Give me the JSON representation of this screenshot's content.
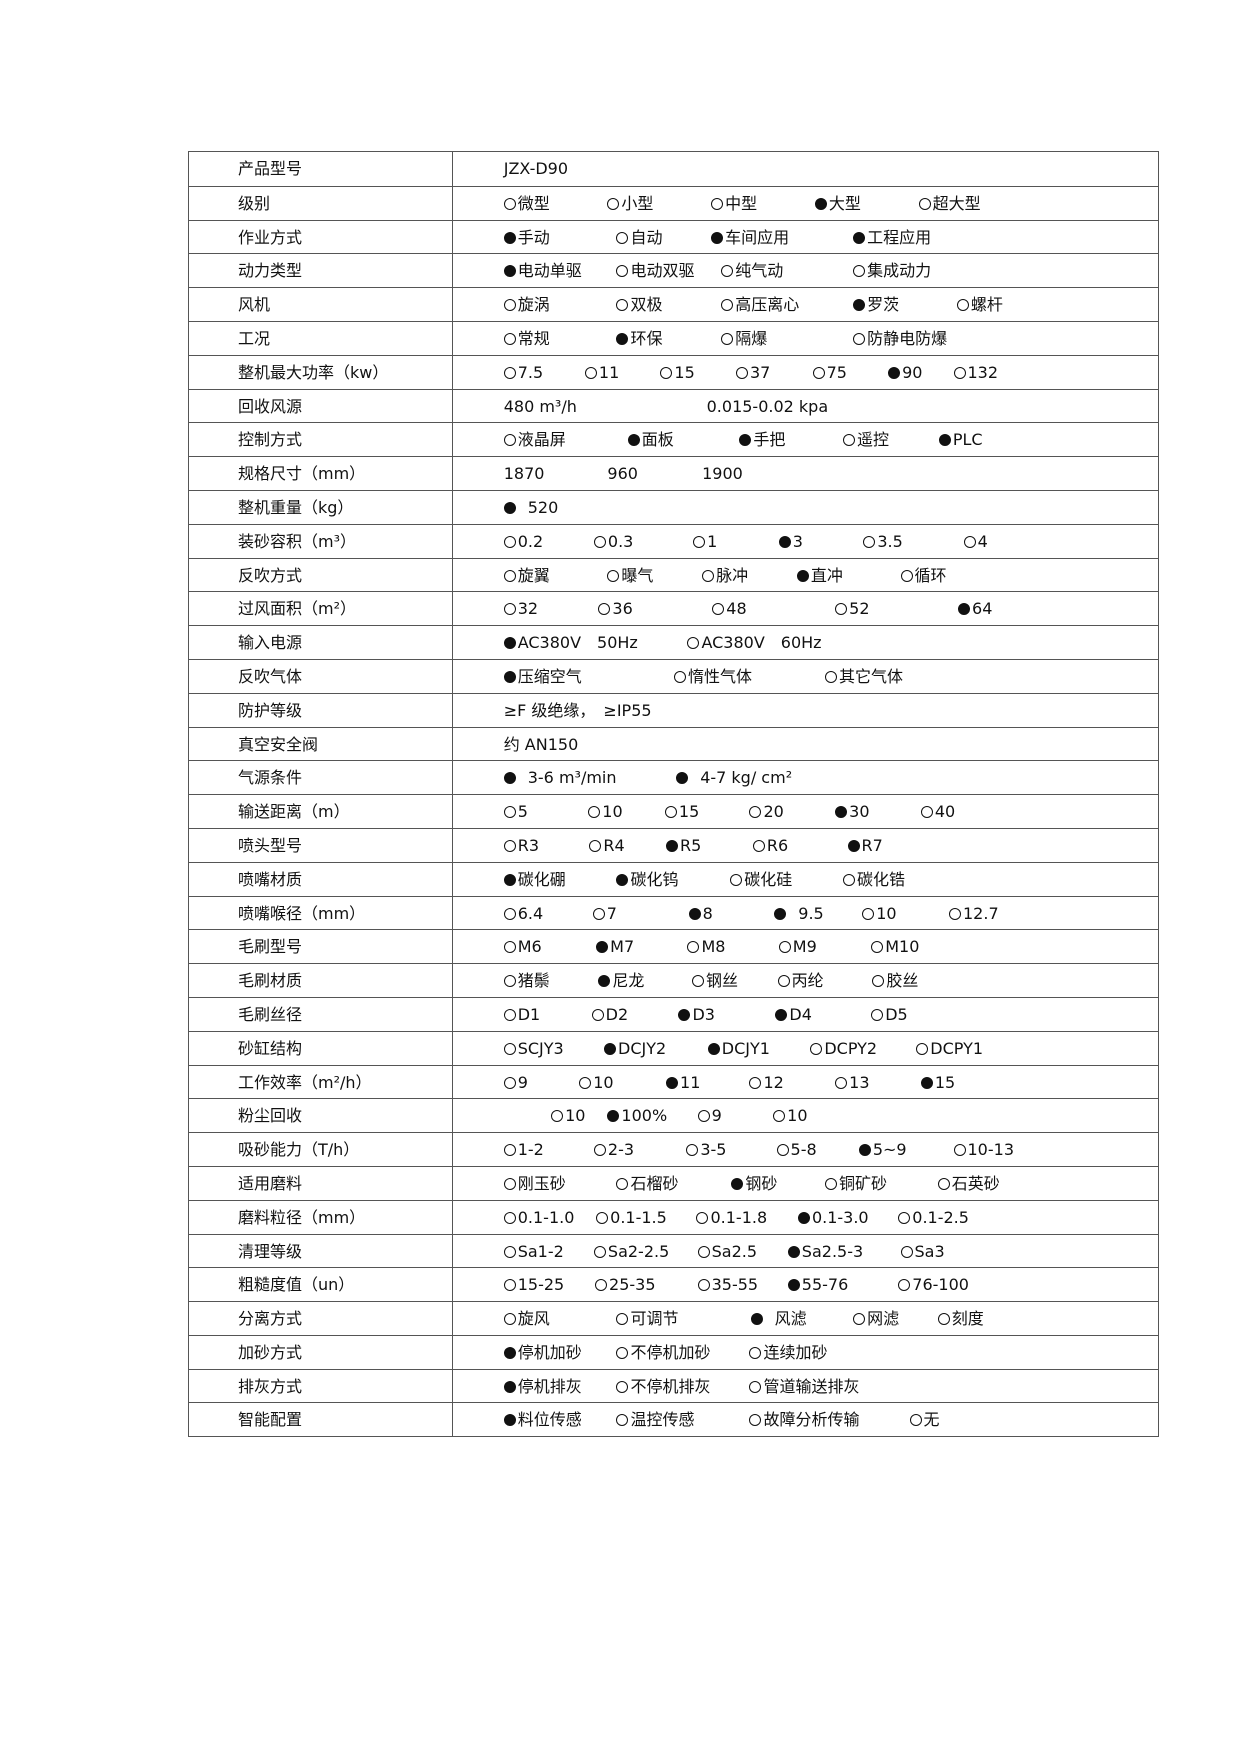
{
  "spec_table": {
    "rows": [
      {
        "label": "产品型号",
        "options": [
          {
            "text": "JZX-D90"
          }
        ]
      },
      {
        "label": "级别",
        "options": [
          {
            "text": "微型",
            "selected": false
          },
          {
            "text": "小型",
            "selected": false
          },
          {
            "text": "中型",
            "selected": false
          },
          {
            "text": "大型",
            "selected": true
          },
          {
            "text": "超大型",
            "selected": false
          }
        ]
      },
      {
        "label": "作业方式",
        "options": [
          {
            "text": "手动",
            "selected": true
          },
          {
            "text": "自动",
            "selected": false
          },
          {
            "text": "车间应用",
            "selected": true
          },
          {
            "text": "工程应用",
            "selected": true
          }
        ]
      },
      {
        "label": "动力类型",
        "options": [
          {
            "text": "电动单驱",
            "selected": true
          },
          {
            "text": "电动双驱",
            "selected": false
          },
          {
            "text": "纯气动",
            "selected": false
          },
          {
            "text": "集成动力",
            "selected": false
          }
        ]
      },
      {
        "label": "风机",
        "options": [
          {
            "text": "旋涡",
            "selected": false
          },
          {
            "text": "双极",
            "selected": false
          },
          {
            "text": "高压离心",
            "selected": false
          },
          {
            "text": "罗茨",
            "selected": true
          },
          {
            "text": "螺杆",
            "selected": false
          }
        ]
      },
      {
        "label": "工况",
        "options": [
          {
            "text": "常规",
            "selected": false
          },
          {
            "text": "环保",
            "selected": true
          },
          {
            "text": "隔爆",
            "selected": false
          },
          {
            "text": "防静电防爆",
            "selected": false
          }
        ]
      },
      {
        "label": "整机最大功率（kw）",
        "options": [
          {
            "text": "7.5",
            "selected": false
          },
          {
            "text": "11",
            "selected": false
          },
          {
            "text": "15",
            "selected": false
          },
          {
            "text": "37",
            "selected": false
          },
          {
            "text": "75",
            "selected": false
          },
          {
            "text": "90",
            "selected": true
          },
          {
            "text": "132",
            "selected": false
          }
        ]
      },
      {
        "label": "回收风源",
        "options": [
          {
            "text": "480 m³/h"
          },
          {
            "text": "0.015-0.02 kpa"
          }
        ]
      },
      {
        "label": "控制方式",
        "options": [
          {
            "text": "液晶屏",
            "selected": false
          },
          {
            "text": "面板",
            "selected": true
          },
          {
            "text": "手把",
            "selected": true
          },
          {
            "text": "遥控",
            "selected": false
          },
          {
            "text": "PLC",
            "selected": true
          }
        ]
      },
      {
        "label": "规格尺寸（mm）",
        "options": [
          {
            "text": "1870"
          },
          {
            "text": "960"
          },
          {
            "text": "1900"
          }
        ]
      },
      {
        "label": "整机重量（kg）",
        "options": [
          {
            "text": "520",
            "selected": true,
            "spaced": true
          }
        ]
      },
      {
        "label": "装砂容积（m³）",
        "options": [
          {
            "text": "0.2",
            "selected": false
          },
          {
            "text": "0.3",
            "selected": false
          },
          {
            "text": "1",
            "selected": false
          },
          {
            "text": "3",
            "selected": true
          },
          {
            "text": "3.5",
            "selected": false
          },
          {
            "text": "4",
            "selected": false
          }
        ]
      },
      {
        "label": "反吹方式",
        "options": [
          {
            "text": "旋翼",
            "selected": false
          },
          {
            "text": "曝气",
            "selected": false
          },
          {
            "text": "脉冲",
            "selected": false
          },
          {
            "text": "直冲",
            "selected": true
          },
          {
            "text": "循环",
            "selected": false
          }
        ]
      },
      {
        "label": "过风面积（m²）",
        "options": [
          {
            "text": "32",
            "selected": false
          },
          {
            "text": "36",
            "selected": false
          },
          {
            "text": "48",
            "selected": false
          },
          {
            "text": "52",
            "selected": false
          },
          {
            "text": "64",
            "selected": true
          }
        ]
      },
      {
        "label": "输入电源",
        "options": [
          {
            "text": "AC380V　50Hz",
            "selected": true
          },
          {
            "text": "AC380V　60Hz",
            "selected": false
          }
        ]
      },
      {
        "label": "反吹气体",
        "options": [
          {
            "text": "压缩空气",
            "selected": true
          },
          {
            "text": "惰性气体",
            "selected": false
          },
          {
            "text": "其它气体",
            "selected": false
          }
        ]
      },
      {
        "label": "防护等级",
        "options": [
          {
            "text": "≥F 级绝缘，　≥IP55"
          }
        ]
      },
      {
        "label": "真空安全阀",
        "options": [
          {
            "text": "约 AN150"
          }
        ]
      },
      {
        "label": "气源条件",
        "options": [
          {
            "text": "3-6 m³/min",
            "selected": true,
            "spaced": true
          },
          {
            "text": "4-7 kg/ cm²",
            "selected": true,
            "spaced": true
          }
        ]
      },
      {
        "label": "输送距离（m）",
        "options": [
          {
            "text": "5",
            "selected": false
          },
          {
            "text": "10",
            "selected": false
          },
          {
            "text": "15",
            "selected": false
          },
          {
            "text": "20",
            "selected": false
          },
          {
            "text": "30",
            "selected": true
          },
          {
            "text": "40",
            "selected": false
          }
        ]
      },
      {
        "label": "喷头型号",
        "options": [
          {
            "text": "R3",
            "selected": false
          },
          {
            "text": "R4",
            "selected": false
          },
          {
            "text": "R5",
            "selected": true
          },
          {
            "text": "R6",
            "selected": false
          },
          {
            "text": "R7",
            "selected": true
          }
        ]
      },
      {
        "label": "喷嘴材质",
        "options": [
          {
            "text": "碳化硼",
            "selected": true
          },
          {
            "text": "碳化钨",
            "selected": true
          },
          {
            "text": "碳化硅",
            "selected": false
          },
          {
            "text": "碳化锆",
            "selected": false
          }
        ]
      },
      {
        "label": "喷嘴喉径（mm）",
        "options": [
          {
            "text": "6.4",
            "selected": false
          },
          {
            "text": "7",
            "selected": false
          },
          {
            "text": "8",
            "selected": true
          },
          {
            "text": "9.5",
            "selected": true,
            "spaced": true
          },
          {
            "text": "10",
            "selected": false
          },
          {
            "text": "12.7",
            "selected": false
          }
        ]
      },
      {
        "label": "毛刷型号",
        "options": [
          {
            "text": "M6",
            "selected": false
          },
          {
            "text": "M7",
            "selected": true
          },
          {
            "text": "M8",
            "selected": false
          },
          {
            "text": "M9",
            "selected": false
          },
          {
            "text": "M10",
            "selected": false
          }
        ]
      },
      {
        "label": "毛刷材质",
        "options": [
          {
            "text": "猪鬃",
            "selected": false
          },
          {
            "text": "尼龙",
            "selected": true
          },
          {
            "text": "钢丝",
            "selected": false
          },
          {
            "text": "丙纶",
            "selected": false
          },
          {
            "text": "胶丝",
            "selected": false
          }
        ]
      },
      {
        "label": "毛刷丝径",
        "options": [
          {
            "text": "D1",
            "selected": false
          },
          {
            "text": "D2",
            "selected": false
          },
          {
            "text": "D3",
            "selected": true
          },
          {
            "text": "D4",
            "selected": true
          },
          {
            "text": "D5",
            "selected": false
          }
        ]
      },
      {
        "label": "砂缸结构",
        "options": [
          {
            "text": "SCJY3",
            "selected": false
          },
          {
            "text": "DCJY2",
            "selected": true
          },
          {
            "text": "DCJY1",
            "selected": true
          },
          {
            "text": "DCPY2",
            "selected": false
          },
          {
            "text": "DCPY1",
            "selected": false
          }
        ]
      },
      {
        "label": "工作效率（m²/h）",
        "options": [
          {
            "text": "9",
            "selected": false
          },
          {
            "text": "10",
            "selected": false
          },
          {
            "text": "11",
            "selected": true
          },
          {
            "text": "12",
            "selected": false
          },
          {
            "text": "13",
            "selected": false
          },
          {
            "text": "15",
            "selected": true
          }
        ]
      },
      {
        "label": "粉尘回收",
        "options": [
          {
            "text": "10",
            "selected": false
          },
          {
            "text": "100%",
            "selected": true
          },
          {
            "text": "9",
            "selected": false
          },
          {
            "text": "10",
            "selected": false
          }
        ]
      },
      {
        "label": "吸砂能力（T/h）",
        "options": [
          {
            "text": "1-2",
            "selected": false
          },
          {
            "text": "2-3",
            "selected": false
          },
          {
            "text": "3-5",
            "selected": false
          },
          {
            "text": "5-8",
            "selected": false
          },
          {
            "text": "5~9",
            "selected": true
          },
          {
            "text": "10-13",
            "selected": false
          }
        ]
      },
      {
        "label": "适用磨料",
        "options": [
          {
            "text": "刚玉砂",
            "selected": false
          },
          {
            "text": "石榴砂",
            "selected": false
          },
          {
            "text": "钢砂",
            "selected": true
          },
          {
            "text": "铜矿砂",
            "selected": false
          },
          {
            "text": "石英砂",
            "selected": false
          }
        ]
      },
      {
        "label": "磨料粒径（mm）",
        "options": [
          {
            "text": "0.1-1.0",
            "selected": false
          },
          {
            "text": "0.1-1.5",
            "selected": false
          },
          {
            "text": "0.1-1.8",
            "selected": false
          },
          {
            "text": "0.1-3.0",
            "selected": true
          },
          {
            "text": "0.1-2.5",
            "selected": false
          }
        ]
      },
      {
        "label": "清理等级",
        "options": [
          {
            "text": "Sa1-2",
            "selected": false
          },
          {
            "text": "Sa2-2.5",
            "selected": false
          },
          {
            "text": "Sa2.5",
            "selected": false
          },
          {
            "text": "Sa2.5-3",
            "selected": true
          },
          {
            "text": "Sa3",
            "selected": false
          }
        ]
      },
      {
        "label": "粗糙度值（un）",
        "options": [
          {
            "text": "15-25",
            "selected": false
          },
          {
            "text": "25-35",
            "selected": false
          },
          {
            "text": "35-55",
            "selected": false
          },
          {
            "text": "55-76",
            "selected": true
          },
          {
            "text": "76-100",
            "selected": false
          }
        ]
      },
      {
        "label": "分离方式",
        "options": [
          {
            "text": "旋风",
            "selected": false
          },
          {
            "text": "可调节",
            "selected": false
          },
          {
            "text": "风滤",
            "selected": true,
            "spaced": true
          },
          {
            "text": "网滤",
            "selected": false
          },
          {
            "text": "刻度",
            "selected": false
          }
        ]
      },
      {
        "label": "加砂方式",
        "options": [
          {
            "text": "停机加砂",
            "selected": true
          },
          {
            "text": "不停机加砂",
            "selected": false
          },
          {
            "text": "连续加砂",
            "selected": false
          }
        ]
      },
      {
        "label": "排灰方式",
        "options": [
          {
            "text": "停机排灰",
            "selected": true
          },
          {
            "text": "不停机排灰",
            "selected": false
          },
          {
            "text": "管道输送排灰",
            "selected": false
          }
        ]
      },
      {
        "label": "智能配置",
        "options": [
          {
            "text": "料位传感",
            "selected": true
          },
          {
            "text": "温控传感",
            "selected": false
          },
          {
            "text": "故障分析传输",
            "selected": false
          },
          {
            "text": "无",
            "selected": false
          }
        ]
      }
    ]
  }
}
